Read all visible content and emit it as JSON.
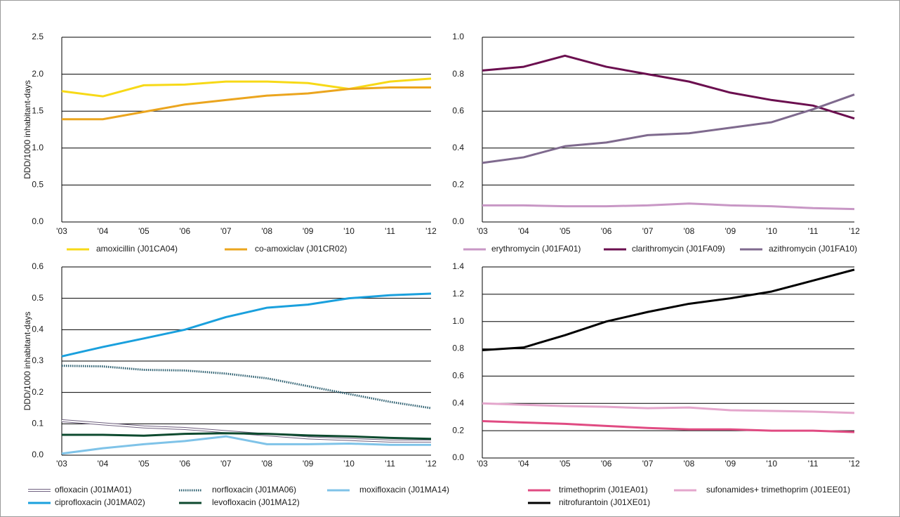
{
  "chart_data": [
    {
      "type": "line",
      "y_label": "DDD/1000 inhabitant-days",
      "categories": [
        "'03",
        "'04",
        "'05",
        "'06",
        "'07",
        "'08",
        "'09",
        "'10",
        "'11",
        "'12"
      ],
      "ylim": [
        0,
        2.5
      ],
      "yticks": [
        {
          "value": 0,
          "label": "0.0"
        },
        0.5,
        {
          "value": 1,
          "label": "1.0"
        },
        1.5,
        {
          "value": 2,
          "label": "2.0"
        },
        2.5
      ],
      "grid": true,
      "series": [
        {
          "name": "amoxicillin (J01CA04)",
          "color": "#f7d917",
          "values": [
            1.77,
            1.7,
            1.85,
            1.86,
            1.9,
            1.9,
            1.88,
            1.8,
            1.9,
            1.94
          ]
        },
        {
          "name": "co-amoxiclav (J01CR02)",
          "color": "#eba51e",
          "values": [
            1.39,
            1.39,
            1.49,
            1.59,
            1.65,
            1.71,
            1.74,
            1.8,
            1.82,
            1.82
          ]
        }
      ]
    },
    {
      "type": "line",
      "categories": [
        "'03",
        "'04",
        "'05",
        "'06",
        "'07",
        "'08",
        "'09",
        "'10",
        "'11",
        "'12"
      ],
      "ylim": [
        0,
        1
      ],
      "yticks": [
        {
          "value": 0,
          "label": "0.0"
        },
        0.2,
        0.4,
        0.6,
        0.8,
        {
          "value": 1,
          "label": "1.0"
        }
      ],
      "grid": true,
      "series": [
        {
          "name": "erythromycin (J01FA01)",
          "color": "#c897c5",
          "values": [
            0.09,
            0.09,
            0.085,
            0.085,
            0.09,
            0.1,
            0.09,
            0.085,
            0.075,
            0.07
          ]
        },
        {
          "name": "clarithromycin (J01FA09)",
          "color": "#6b0f4f",
          "values": [
            0.82,
            0.84,
            0.9,
            0.84,
            0.8,
            0.76,
            0.7,
            0.66,
            0.63,
            0.56
          ]
        },
        {
          "name": "azithromycin (J01FA10)",
          "color": "#7f6a8e",
          "values": [
            0.32,
            0.35,
            0.41,
            0.43,
            0.47,
            0.48,
            0.51,
            0.54,
            0.61,
            0.69
          ]
        }
      ]
    },
    {
      "type": "line",
      "y_label": "DDD/1000 inhabitant-days",
      "categories": [
        "'03",
        "'04",
        "'05",
        "'06",
        "'07",
        "'08",
        "'09",
        "'10",
        "'11",
        "'12"
      ],
      "ylim": [
        0,
        0.6
      ],
      "yticks": [
        {
          "value": 0,
          "label": "0.0"
        },
        0.1,
        0.2,
        0.3,
        0.4,
        0.5,
        0.6
      ],
      "grid": true,
      "series": [
        {
          "name": "ofloxacin (J01MA01)",
          "color": "#6e5f7e",
          "style": "outlined",
          "values": [
            0.11,
            0.1,
            0.09,
            0.085,
            0.075,
            0.065,
            0.055,
            0.05,
            0.045,
            0.045
          ]
        },
        {
          "name": "norfloxacin (J01MA06)",
          "color": "#2a5d6e",
          "style": "dotted",
          "values": [
            0.285,
            0.283,
            0.272,
            0.27,
            0.26,
            0.245,
            0.22,
            0.195,
            0.17,
            0.15
          ]
        },
        {
          "name": "moxifloxacin (J01MA14)",
          "color": "#7fc3e8",
          "values": [
            0.005,
            0.022,
            0.035,
            0.045,
            0.06,
            0.035,
            0.035,
            0.037,
            0.033,
            0.033
          ]
        },
        {
          "name": "ciprofloxacin (J01MA02)",
          "color": "#1aa0dd",
          "values": [
            0.315,
            0.345,
            0.372,
            0.4,
            0.44,
            0.47,
            0.48,
            0.5,
            0.51,
            0.515
          ]
        },
        {
          "name": "levofloxacin (J01MA12)",
          "color": "#0d4a2f",
          "values": [
            0.065,
            0.065,
            0.062,
            0.068,
            0.07,
            0.068,
            0.063,
            0.06,
            0.055,
            0.052
          ]
        }
      ]
    },
    {
      "type": "line",
      "categories": [
        "'03",
        "'04",
        "'05",
        "'06",
        "'07",
        "'08",
        "'09",
        "'10",
        "'11",
        "'12"
      ],
      "ylim": [
        0,
        1.4
      ],
      "yticks": [
        {
          "value": 0,
          "label": "0.0"
        },
        0.2,
        0.4,
        0.6,
        0.8,
        {
          "value": 1,
          "label": "1.0"
        },
        1.2,
        1.4
      ],
      "grid": true,
      "series": [
        {
          "name": "trimethoprim (J01EA01)",
          "color": "#e04b82",
          "values": [
            0.27,
            0.26,
            0.25,
            0.235,
            0.22,
            0.21,
            0.21,
            0.2,
            0.2,
            0.19
          ]
        },
        {
          "name": "sufonamides+ trimethoprim  (J01EE01)",
          "color": "#e4a6cc",
          "values": [
            0.4,
            0.39,
            0.38,
            0.375,
            0.365,
            0.37,
            0.35,
            0.345,
            0.34,
            0.33
          ]
        },
        {
          "name": "nitrofurantoin (J01XE01)",
          "color": "#000000",
          "values": [
            0.79,
            0.81,
            0.9,
            1.0,
            1.07,
            1.13,
            1.17,
            1.22,
            1.3,
            1.38
          ]
        }
      ]
    }
  ]
}
